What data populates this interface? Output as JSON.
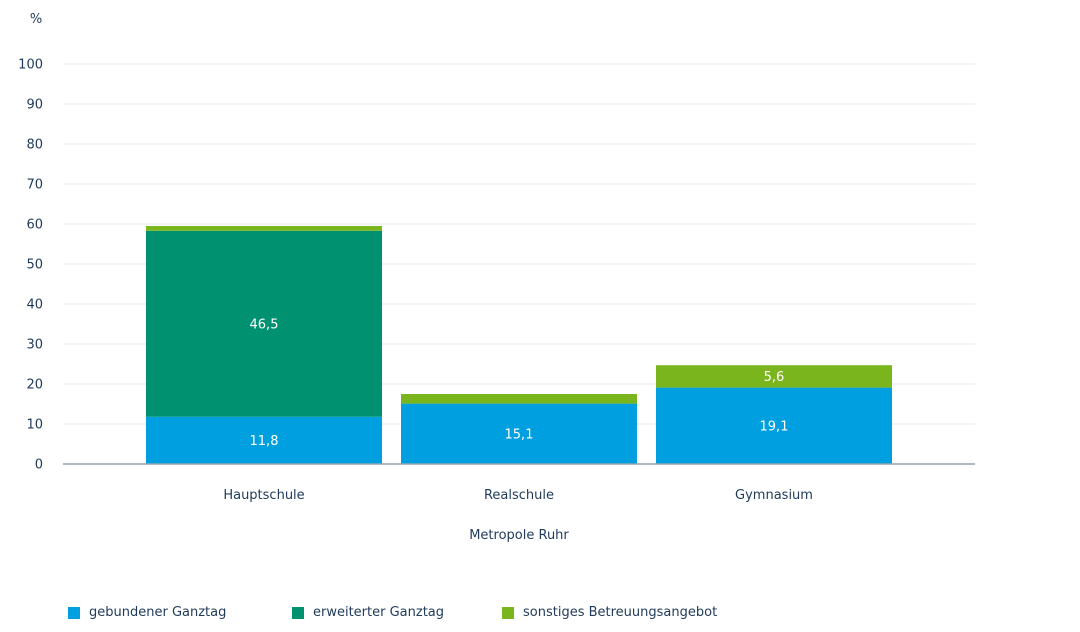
{
  "colors": {
    "gebunden": "#009fdf",
    "erweitert": "#009170",
    "sonstiges": "#7ab51d",
    "axis_text": "#1f3a5a",
    "grid": "#e3e8ec",
    "baseline": "#8fa3b3"
  },
  "chart_data": {
    "type": "bar",
    "stacked": true,
    "ylabel": "%",
    "ylim": [
      0,
      100
    ],
    "yticks": [
      0,
      10,
      20,
      30,
      40,
      50,
      60,
      70,
      80,
      90,
      100
    ],
    "categories": [
      "Hauptschule",
      "Realschule",
      "Gymnasium"
    ],
    "xlabel": "Metropole Ruhr",
    "grid": true,
    "legend_position": "bottom-left",
    "series": [
      {
        "name": "gebundener Ganztag",
        "color_key": "gebunden",
        "values": [
          11.8,
          15.1,
          19.1
        ],
        "labels": [
          "11,8",
          "15,1",
          "19,1"
        ]
      },
      {
        "name": "erweiterter Ganztag",
        "color_key": "erweitert",
        "values": [
          46.5,
          0,
          0
        ],
        "labels": [
          "46,5",
          "",
          ""
        ]
      },
      {
        "name": "sonstiges Betreuungsangebot",
        "color_key": "sonstiges",
        "values": [
          1.2,
          2.4,
          5.6
        ],
        "labels": [
          "",
          "",
          "5,6"
        ]
      }
    ]
  }
}
